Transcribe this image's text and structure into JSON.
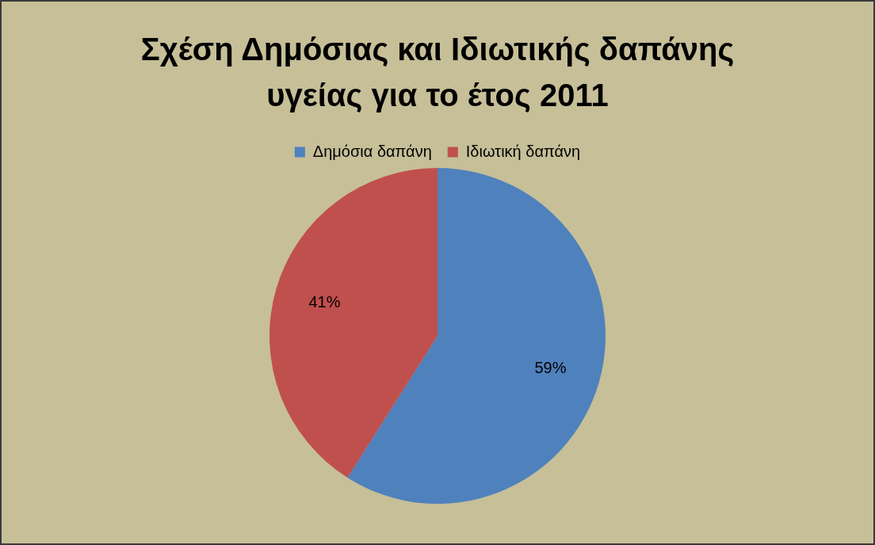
{
  "chart_data": {
    "type": "pie",
    "title": "Σχέση Δημόσιας και Ιδιωτικής δαπάνης υγείας για το έτος 2011",
    "categories": [
      "Δημόσια δαπάνη",
      "Ιδιωτική δαπάνη"
    ],
    "values": [
      59,
      41
    ],
    "colors": [
      "#4f81bd",
      "#c0504d"
    ],
    "value_labels": [
      "59%",
      "41%"
    ],
    "legend": "top"
  }
}
